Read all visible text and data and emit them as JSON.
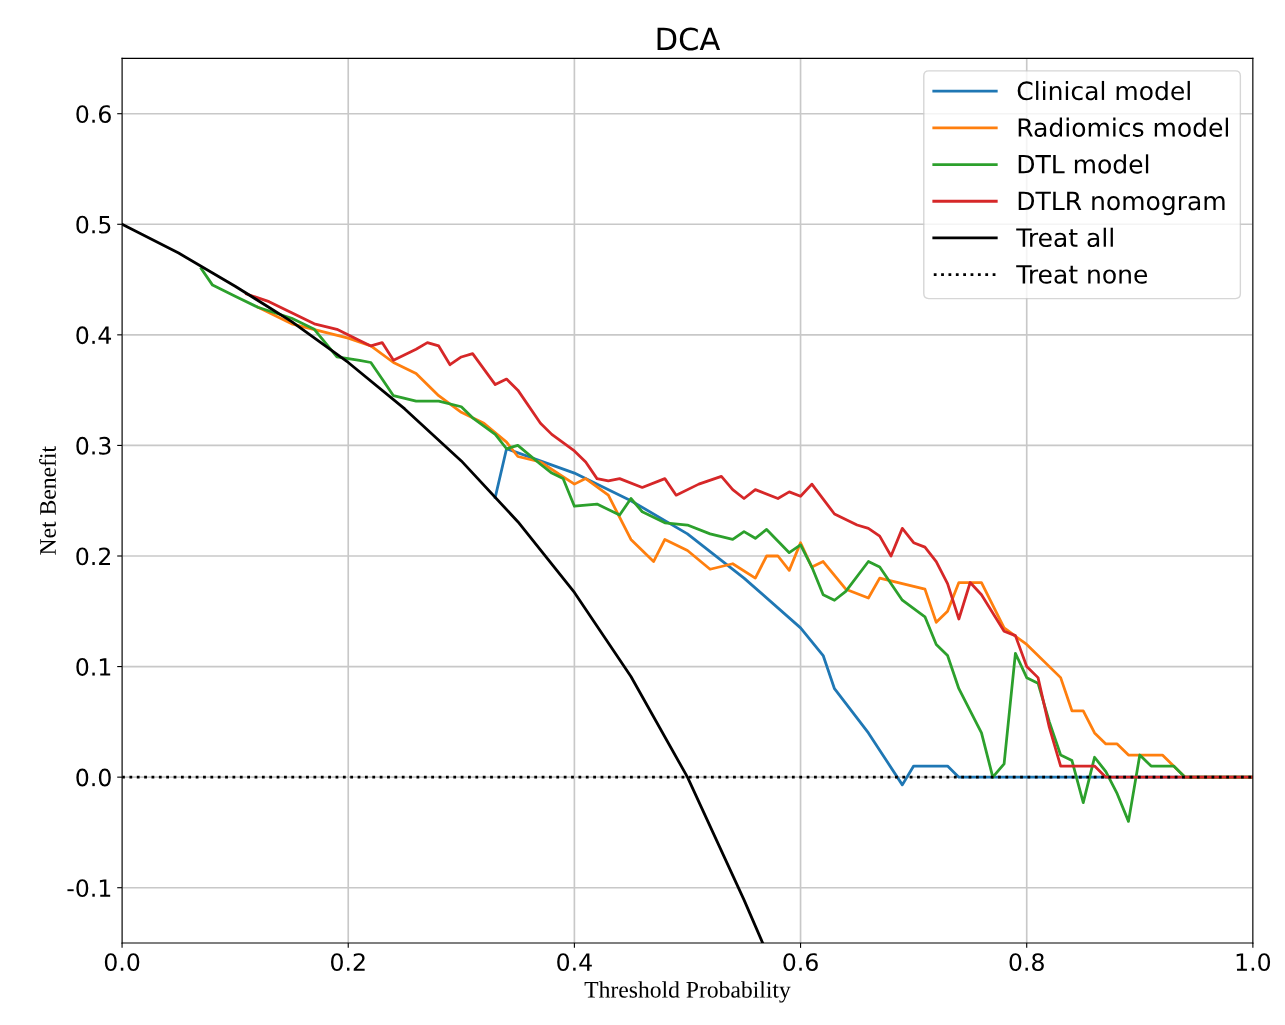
{
  "chart_data": {
    "type": "line",
    "title": "DCA",
    "xlabel": "Threshold Probability",
    "ylabel": "Net Benefit",
    "xlim": [
      0,
      1
    ],
    "ylim": [
      -0.15,
      0.65
    ],
    "xticks": [
      {
        "value": 0,
        "label": "0.0"
      },
      0.2,
      0.4,
      0.6,
      0.8,
      {
        "value": 1,
        "label": "1.0"
      }
    ],
    "yticks": [
      {
        "value": -0.1,
        "label": "-0.1"
      },
      {
        "value": 0,
        "label": "0.0"
      },
      0.1,
      0.2,
      0.3,
      0.4,
      0.5,
      0.6
    ],
    "grid": true,
    "legend": "top right",
    "series": [
      {
        "name": "Clinical model",
        "color": "#1f77b4",
        "x": [
          0.33,
          0.34,
          0.4,
          0.45,
          0.5,
          0.55,
          0.6,
          0.62,
          0.63,
          0.66,
          0.69,
          0.7,
          0.73,
          0.74,
          1.0
        ],
        "values": [
          0.253,
          0.297,
          0.275,
          0.25,
          0.22,
          0.18,
          0.135,
          0.11,
          0.08,
          0.04,
          -0.007,
          0.01,
          0.01,
          0.0,
          0.0
        ]
      },
      {
        "name": "Radiomics model",
        "color": "#ff7f0e",
        "x": [
          0.12,
          0.15,
          0.2,
          0.22,
          0.24,
          0.26,
          0.28,
          0.3,
          0.32,
          0.34,
          0.35,
          0.37,
          0.4,
          0.41,
          0.43,
          0.45,
          0.47,
          0.48,
          0.5,
          0.52,
          0.54,
          0.56,
          0.57,
          0.58,
          0.59,
          0.6,
          0.61,
          0.62,
          0.64,
          0.66,
          0.67,
          0.69,
          0.71,
          0.72,
          0.73,
          0.74,
          0.76,
          0.78,
          0.8,
          0.83,
          0.84,
          0.85,
          0.86,
          0.87,
          0.88,
          0.89,
          0.92,
          0.94,
          1.0
        ],
        "values": [
          0.425,
          0.41,
          0.397,
          0.39,
          0.375,
          0.365,
          0.345,
          0.33,
          0.32,
          0.303,
          0.29,
          0.285,
          0.265,
          0.27,
          0.255,
          0.215,
          0.195,
          0.215,
          0.205,
          0.188,
          0.193,
          0.18,
          0.2,
          0.2,
          0.187,
          0.212,
          0.19,
          0.195,
          0.17,
          0.162,
          0.18,
          0.175,
          0.17,
          0.14,
          0.15,
          0.176,
          0.176,
          0.135,
          0.12,
          0.09,
          0.06,
          0.06,
          0.04,
          0.03,
          0.03,
          0.02,
          0.02,
          0.0,
          0.0
        ]
      },
      {
        "name": "DTL model",
        "color": "#2ca02c",
        "x": [
          0.07,
          0.08,
          0.1,
          0.12,
          0.15,
          0.17,
          0.19,
          0.21,
          0.22,
          0.23,
          0.24,
          0.26,
          0.28,
          0.3,
          0.31,
          0.33,
          0.34,
          0.35,
          0.37,
          0.38,
          0.39,
          0.4,
          0.42,
          0.44,
          0.45,
          0.46,
          0.48,
          0.5,
          0.52,
          0.54,
          0.55,
          0.56,
          0.57,
          0.59,
          0.6,
          0.61,
          0.62,
          0.63,
          0.64,
          0.66,
          0.67,
          0.69,
          0.71,
          0.72,
          0.73,
          0.74,
          0.76,
          0.77,
          0.78,
          0.79,
          0.8,
          0.81,
          0.82,
          0.83,
          0.84,
          0.85,
          0.86,
          0.87,
          0.88,
          0.89,
          0.9,
          0.91,
          0.93,
          0.94,
          1.0
        ],
        "values": [
          0.46,
          0.445,
          0.435,
          0.425,
          0.415,
          0.405,
          0.38,
          0.377,
          0.375,
          0.36,
          0.345,
          0.34,
          0.34,
          0.335,
          0.325,
          0.31,
          0.297,
          0.3,
          0.283,
          0.275,
          0.27,
          0.245,
          0.247,
          0.237,
          0.252,
          0.24,
          0.23,
          0.228,
          0.22,
          0.215,
          0.222,
          0.216,
          0.224,
          0.203,
          0.21,
          0.19,
          0.165,
          0.16,
          0.168,
          0.195,
          0.19,
          0.16,
          0.145,
          0.12,
          0.11,
          0.08,
          0.04,
          0.0,
          0.012,
          0.112,
          0.09,
          0.085,
          0.05,
          0.02,
          0.015,
          -0.023,
          0.018,
          0.005,
          -0.015,
          -0.04,
          0.02,
          0.01,
          0.01,
          0.0,
          0.0
        ]
      },
      {
        "name": "DTLR nomogram",
        "color": "#d62728",
        "x": [
          0.11,
          0.13,
          0.15,
          0.17,
          0.19,
          0.21,
          0.22,
          0.23,
          0.24,
          0.26,
          0.27,
          0.28,
          0.29,
          0.3,
          0.31,
          0.33,
          0.34,
          0.35,
          0.37,
          0.38,
          0.4,
          0.41,
          0.42,
          0.43,
          0.44,
          0.46,
          0.48,
          0.49,
          0.51,
          0.53,
          0.54,
          0.55,
          0.56,
          0.58,
          0.59,
          0.6,
          0.61,
          0.63,
          0.65,
          0.66,
          0.67,
          0.68,
          0.69,
          0.7,
          0.71,
          0.72,
          0.73,
          0.74,
          0.75,
          0.76,
          0.78,
          0.79,
          0.8,
          0.81,
          0.82,
          0.83,
          0.85,
          0.86,
          0.87,
          1.0
        ],
        "values": [
          0.437,
          0.43,
          0.42,
          0.41,
          0.405,
          0.395,
          0.39,
          0.393,
          0.377,
          0.387,
          0.393,
          0.39,
          0.373,
          0.38,
          0.383,
          0.355,
          0.36,
          0.35,
          0.32,
          0.31,
          0.295,
          0.285,
          0.27,
          0.268,
          0.27,
          0.262,
          0.27,
          0.255,
          0.265,
          0.272,
          0.26,
          0.252,
          0.26,
          0.252,
          0.258,
          0.254,
          0.265,
          0.238,
          0.228,
          0.225,
          0.218,
          0.2,
          0.225,
          0.212,
          0.208,
          0.195,
          0.175,
          0.143,
          0.176,
          0.165,
          0.132,
          0.128,
          0.1,
          0.09,
          0.045,
          0.01,
          0.01,
          0.01,
          0.0,
          0.0
        ]
      },
      {
        "name": "Treat all",
        "color": "#000000",
        "x": [
          0,
          0.05,
          0.1,
          0.15,
          0.2,
          0.25,
          0.3,
          0.35,
          0.4,
          0.45,
          0.5,
          0.55,
          0.5665
        ],
        "values": [
          0.5,
          0.474,
          0.444,
          0.412,
          0.375,
          0.333,
          0.286,
          0.231,
          0.167,
          0.091,
          0.0,
          -0.111,
          -0.15
        ]
      },
      {
        "name": "Treat none",
        "color": "#000000",
        "line_style": "dotted",
        "x": [
          0,
          1
        ],
        "values": [
          0,
          0
        ]
      }
    ]
  }
}
